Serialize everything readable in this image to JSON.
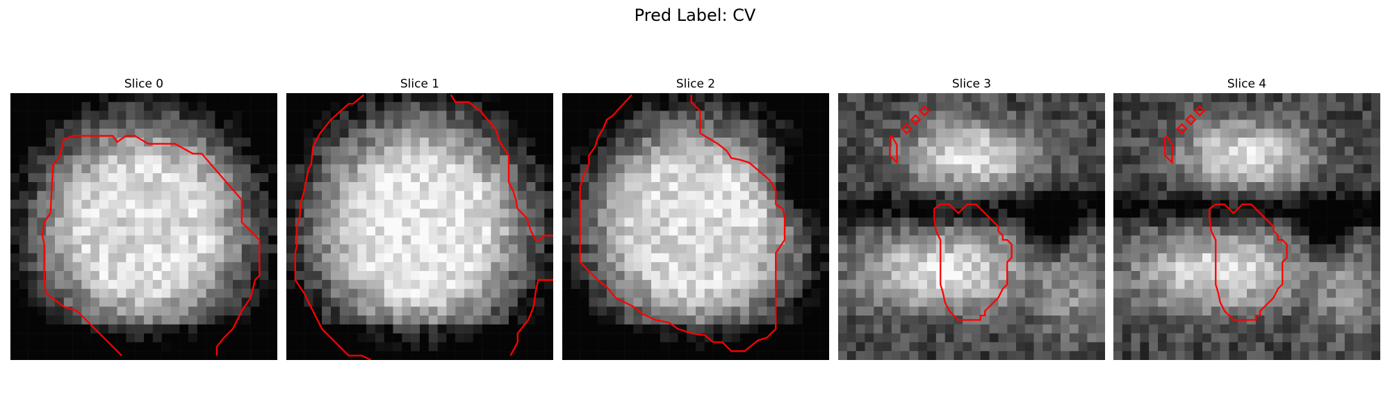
{
  "figure": {
    "title": "Pred Label: CV"
  },
  "colors": {
    "contour": "#ff0000",
    "background": "#ffffff"
  },
  "slices": [
    {
      "title": "Slice 0",
      "seed": 11,
      "pattern": "blob"
    },
    {
      "title": "Slice 1",
      "seed": 23,
      "pattern": "blob-bright"
    },
    {
      "title": "Slice 2",
      "seed": 37,
      "pattern": "blob-dark-right"
    },
    {
      "title": "Slice 3",
      "seed": 41,
      "pattern": "two-lobe"
    },
    {
      "title": "Slice 4",
      "seed": 59,
      "pattern": "two-lobe"
    }
  ]
}
